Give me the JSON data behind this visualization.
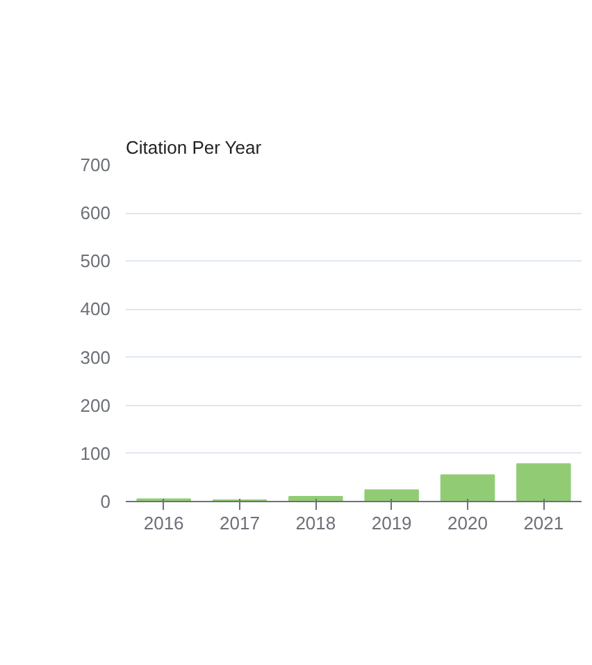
{
  "chart_data": {
    "type": "bar",
    "title": "Citation Per Year",
    "categories": [
      "2016",
      "2017",
      "2018",
      "2019",
      "2020",
      "2021"
    ],
    "values": [
      5,
      3,
      10,
      24,
      55,
      78
    ],
    "color": "#91cc75",
    "ylim": [
      0,
      700
    ],
    "yticks": [
      0,
      100,
      200,
      300,
      400,
      500,
      600,
      700
    ],
    "grid": "y"
  }
}
